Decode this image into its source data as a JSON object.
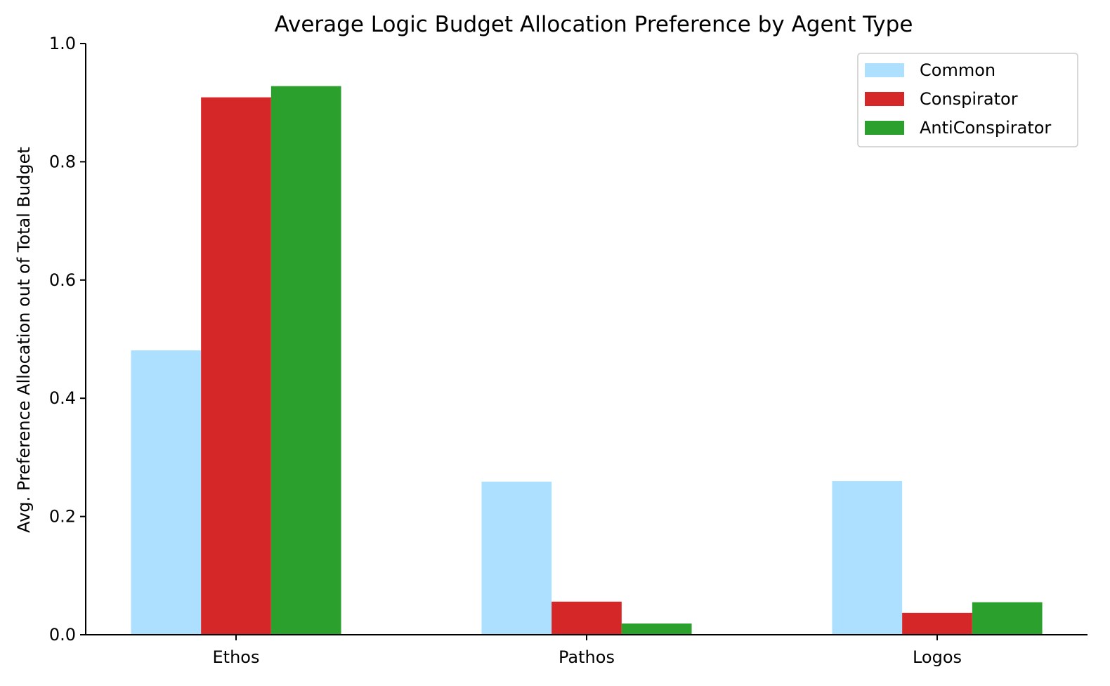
{
  "chart_data": {
    "type": "bar",
    "title": "Average Logic Budget Allocation Preference by Agent Type",
    "xlabel": "",
    "ylabel": "Avg. Preference Allocation out of Total Budget",
    "categories": [
      "Ethos",
      "Pathos",
      "Logos"
    ],
    "series": [
      {
        "name": "Common",
        "color": "#addfff",
        "values": [
          0.481,
          0.259,
          0.26
        ]
      },
      {
        "name": "Conspirator",
        "color": "#d62728",
        "values": [
          0.909,
          0.056,
          0.037
        ]
      },
      {
        "name": "AntiConspirator",
        "color": "#2ca02c",
        "values": [
          0.928,
          0.019,
          0.055
        ]
      }
    ],
    "ylim": [
      0,
      1.0
    ],
    "yticks": [
      "0.0",
      "0.2",
      "0.4",
      "0.6",
      "0.8",
      "1.0"
    ],
    "grid": false,
    "legend_position": "top-right"
  }
}
